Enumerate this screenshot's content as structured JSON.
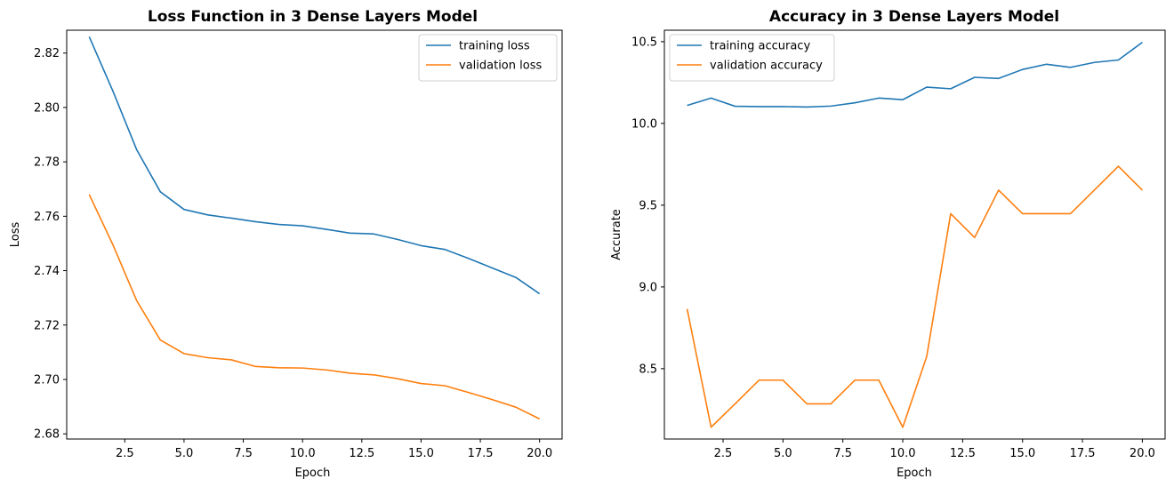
{
  "chart_data": [
    {
      "type": "line",
      "title": "Loss Function in 3 Dense Layers Model",
      "xlabel": "Epoch",
      "ylabel": "Loss",
      "xlim": [
        0.05,
        20.95
      ],
      "ylim": [
        2.6781,
        2.8284
      ],
      "xticks": [
        2.5,
        5.0,
        7.5,
        10.0,
        12.5,
        15.0,
        17.5,
        20.0
      ],
      "yticks": [
        2.68,
        2.7,
        2.72,
        2.74,
        2.76,
        2.78,
        2.8,
        2.82
      ],
      "ytick_decimals": 2,
      "legend_position": "top-right",
      "x": [
        1,
        2,
        3,
        4,
        5,
        6,
        7,
        8,
        9,
        10,
        11,
        12,
        13,
        14,
        15,
        16,
        17,
        18,
        19,
        20
      ],
      "series": [
        {
          "name": "training loss",
          "color": "#1f77b4",
          "values": [
            2.826,
            2.806,
            2.7845,
            2.769,
            2.7625,
            2.7605,
            2.7593,
            2.758,
            2.757,
            2.7565,
            2.7552,
            2.7538,
            2.7535,
            2.7515,
            2.7492,
            2.7478,
            2.7445,
            2.741,
            2.7375,
            2.7315
          ]
        },
        {
          "name": "validation loss",
          "color": "#ff7f0e",
          "values": [
            2.768,
            2.7495,
            2.729,
            2.7145,
            2.7095,
            2.708,
            2.7072,
            2.7048,
            2.7043,
            2.7042,
            2.7035,
            2.7023,
            2.7017,
            2.7003,
            2.6985,
            2.6977,
            2.6952,
            2.6926,
            2.6898,
            2.6855
          ]
        }
      ]
    },
    {
      "type": "line",
      "title": "Accuracy in 3 Dense Layers Model",
      "xlabel": "Epoch",
      "ylabel": "Accurate",
      "xlim": [
        0.05,
        20.95
      ],
      "ylim": [
        8.07,
        10.57
      ],
      "xticks": [
        2.5,
        5.0,
        7.5,
        10.0,
        12.5,
        15.0,
        17.5,
        20.0
      ],
      "yticks": [
        8.5,
        9.0,
        9.5,
        10.0,
        10.5
      ],
      "ytick_decimals": 1,
      "legend_position": "top-left",
      "x": [
        1,
        2,
        3,
        4,
        5,
        6,
        7,
        8,
        9,
        10,
        11,
        12,
        13,
        14,
        15,
        16,
        17,
        18,
        19,
        20
      ],
      "series": [
        {
          "name": "training accuracy",
          "color": "#1f77b4",
          "values": [
            10.11,
            10.155,
            10.105,
            10.103,
            10.103,
            10.1,
            10.106,
            10.126,
            10.155,
            10.145,
            10.222,
            10.212,
            10.282,
            10.275,
            10.33,
            10.362,
            10.343,
            10.373,
            10.388,
            10.496
          ]
        },
        {
          "name": "validation accuracy",
          "color": "#ff7f0e",
          "values": [
            8.865,
            8.142,
            8.285,
            8.43,
            8.43,
            8.285,
            8.285,
            8.43,
            8.43,
            8.142,
            8.575,
            9.448,
            9.302,
            9.592,
            9.448,
            9.448,
            9.448,
            9.593,
            9.738,
            9.592
          ]
        }
      ]
    }
  ]
}
